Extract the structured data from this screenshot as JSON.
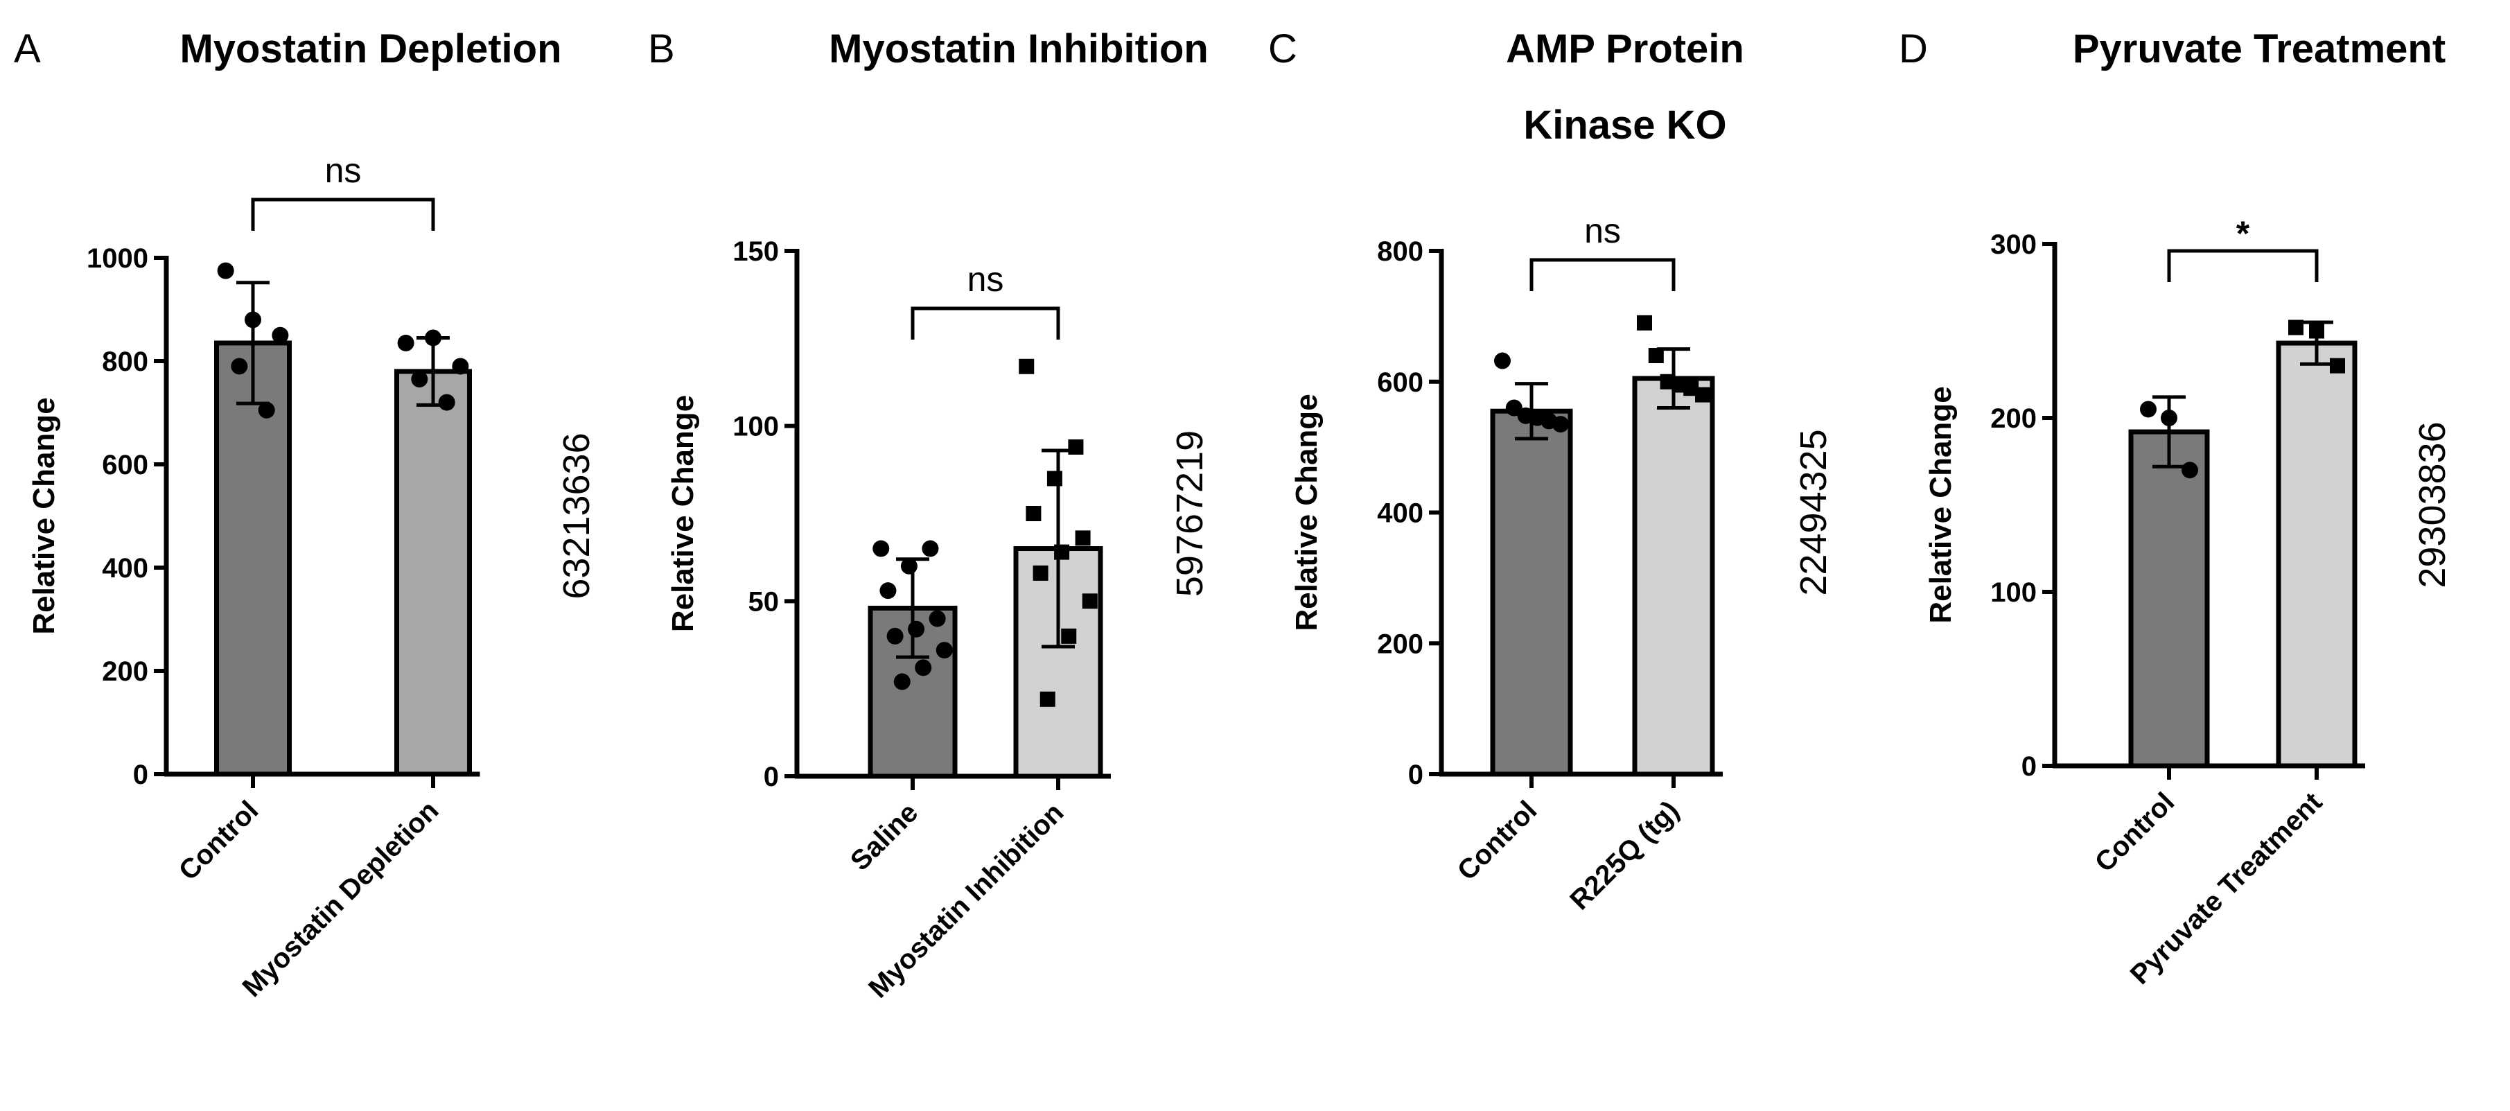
{
  "chart_data": [
    {
      "type": "bar",
      "panel": "A",
      "title": "Myostatin Depletion",
      "ylabel": "Relative Change",
      "xlabel": "",
      "categories": [
        "Control",
        "Myostatin Depletion"
      ],
      "values": [
        835,
        780
      ],
      "error": [
        117,
        65
      ],
      "points": [
        [
          975,
          880,
          850,
          790,
          705
        ],
        [
          835,
          845,
          790,
          765,
          720
        ]
      ],
      "markers": [
        "circle",
        "circle"
      ],
      "colors": [
        "#7a7a7a",
        "#a7a7a9"
      ],
      "ylim": [
        0,
        1000
      ],
      "yticks": [
        0,
        200,
        400,
        600,
        800,
        1000
      ],
      "significance": "ns",
      "side_id": "63213636"
    },
    {
      "type": "bar",
      "panel": "B",
      "title": "Myostatin Inhibition",
      "ylabel": "Relative Change",
      "xlabel": "",
      "categories": [
        "Saline",
        "Myostatin Inhibition"
      ],
      "values": [
        48,
        65
      ],
      "error": [
        14,
        28
      ],
      "points": [
        [
          65,
          65,
          60,
          53,
          45,
          42,
          40,
          36,
          31,
          27
        ],
        [
          117,
          94,
          85,
          75,
          68,
          64,
          58,
          50,
          40,
          22
        ]
      ],
      "markers": [
        "circle",
        "square"
      ],
      "colors": [
        "#7a7a7a",
        "#d2d2d4"
      ],
      "ylim": [
        0,
        150
      ],
      "yticks": [
        0,
        50,
        100,
        150
      ],
      "significance": "ns",
      "side_id": "59767219"
    },
    {
      "type": "bar",
      "panel": "C",
      "title": "AMP Protein Kinase KO",
      "ylabel": "Relative Change",
      "xlabel": "",
      "categories": [
        "Control",
        "R225Q (tg)"
      ],
      "values": [
        555,
        605
      ],
      "error": [
        42,
        45
      ],
      "points": [
        [
          632,
          560,
          548,
          545,
          540,
          535
        ],
        [
          690,
          640,
          600,
          595,
          590,
          580
        ]
      ],
      "markers": [
        "circle",
        "square"
      ],
      "colors": [
        "#7a7a7a",
        "#d2d2d4"
      ],
      "ylim": [
        0,
        800
      ],
      "yticks": [
        0,
        200,
        400,
        600,
        800
      ],
      "significance": "ns",
      "side_id": "22494325"
    },
    {
      "type": "bar",
      "panel": "D",
      "title": "Pyruvate Treatment",
      "ylabel": "Relative Change",
      "xlabel": "",
      "categories": [
        "Control",
        "Pyruvate Treatment"
      ],
      "values": [
        192,
        243
      ],
      "error": [
        20,
        12
      ],
      "points": [
        [
          205,
          200,
          170
        ],
        [
          252,
          250,
          230
        ]
      ],
      "markers": [
        "circle",
        "square"
      ],
      "colors": [
        "#7a7a7a",
        "#d2d2d4"
      ],
      "ylim": [
        0,
        300
      ],
      "yticks": [
        0,
        100,
        200,
        300
      ],
      "significance": "*",
      "side_id": "29303836"
    }
  ]
}
